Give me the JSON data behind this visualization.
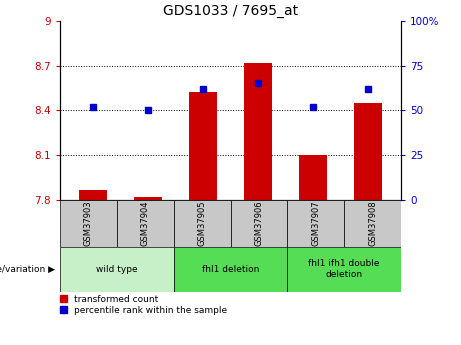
{
  "title": "GDS1033 / 7695_at",
  "samples": [
    "GSM37903",
    "GSM37904",
    "GSM37905",
    "GSM37906",
    "GSM37907",
    "GSM37908"
  ],
  "red_values": [
    7.87,
    7.82,
    8.52,
    8.72,
    8.1,
    8.45
  ],
  "blue_values": [
    52,
    50,
    62,
    65,
    52,
    62
  ],
  "ylim_left": [
    7.8,
    9.0
  ],
  "ylim_right": [
    0,
    100
  ],
  "yticks_left": [
    7.8,
    8.1,
    8.4,
    8.7,
    9.0
  ],
  "yticks_right": [
    0,
    25,
    50,
    75,
    100
  ],
  "ytick_labels_left": [
    "7.8",
    "8.1",
    "8.4",
    "8.7",
    "9"
  ],
  "ytick_labels_right": [
    "0",
    "25",
    "50",
    "75",
    "100%"
  ],
  "group_header": "genotype/variation",
  "legend_red": "transformed count",
  "legend_blue": "percentile rank within the sample",
  "red_color": "#cc0000",
  "blue_color": "#0000cc",
  "bar_bottom": 7.8,
  "bg_plot": "#ffffff",
  "bg_sample_row": "#c8c8c8",
  "bg_group_light": "#c8f0c8",
  "bg_group_bright": "#44dd44",
  "x_positions": [
    0,
    1,
    2,
    3,
    4,
    5
  ],
  "group_bounds": [
    [
      0,
      1,
      "wild type",
      "#c8f0c8"
    ],
    [
      2,
      3,
      "fhl1 deletion",
      "#55dd55"
    ],
    [
      4,
      5,
      "fhl1 ifh1 double\ndeletion",
      "#55dd55"
    ]
  ]
}
